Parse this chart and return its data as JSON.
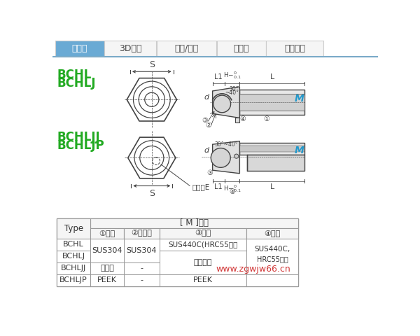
{
  "tab_labels": [
    "尺寸图",
    "3D预览",
    "型号/交期",
    "规格表",
    "产品目录"
  ],
  "tab_active_color": "#6aaad4",
  "tab_inactive_color": "#f5f5f5",
  "tab_border_color": "#cccccc",
  "tab_text_active": "#ffffff",
  "tab_text_inactive": "#444444",
  "bg_color": "#ffffff",
  "label_color": "#22aa22",
  "line_color": "#444444",
  "cyan_color": "#2299cc",
  "watermark": "www.zgwjw66.cn",
  "watermark_color": "#cc2222",
  "body_fill": "#e0e0e0",
  "body_fill2": "#d0d0d0",
  "tab_bottom_color": "#7aaac8",
  "table_header_fill": "#f5f5f5",
  "table_border": "#999999"
}
